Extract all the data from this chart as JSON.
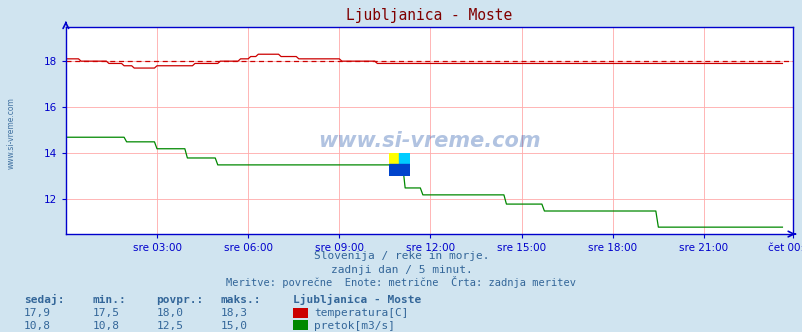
{
  "title": "Ljubljanica - Moste",
  "bg_color": "#d0e4f0",
  "plot_bg_color": "#ffffff",
  "grid_color": "#ffaaaa",
  "axis_color": "#0000cc",
  "title_color": "#800000",
  "label_color": "#336699",
  "x_labels": [
    "sre 03:00",
    "sre 06:00",
    "sre 09:00",
    "sre 12:00",
    "sre 15:00",
    "sre 18:00",
    "sre 21:00",
    "čet 00:00"
  ],
  "y_ticks_temp": [
    12,
    14,
    16,
    18
  ],
  "ylim": [
    10.5,
    19.5
  ],
  "temp_color": "#cc0000",
  "flow_color": "#008800",
  "temp_avg_line": 18.0,
  "temp_avg_color": "#cc0000",
  "watermark": "www.si-vreme.com",
  "subtitle1": "Slovenija / reke in morje.",
  "subtitle2": "zadnji dan / 5 minut.",
  "subtitle3": "Meritve: povrečne  Enote: metrične  Črta: zadnja meritev",
  "legend_title": "Ljubljanica - Moste",
  "legend_items": [
    {
      "label": "temperatura[C]",
      "color": "#cc0000"
    },
    {
      "label": "pretok[m3/s]",
      "color": "#008800"
    }
  ],
  "stats_headers": [
    "sedaj:",
    "min.:",
    "povpr.:",
    "maks.:"
  ],
  "stats_temp": [
    "17,9",
    "17,5",
    "18,0",
    "18,3"
  ],
  "stats_flow": [
    "10,8",
    "10,8",
    "12,5",
    "15,0"
  ],
  "temp_data": [
    18.1,
    18.1,
    18.1,
    18.1,
    18.1,
    18.1,
    18.0,
    18.0,
    18.0,
    18.0,
    18.0,
    18.0,
    18.0,
    18.0,
    18.0,
    18.0,
    18.0,
    17.9,
    17.9,
    17.9,
    17.9,
    17.9,
    17.9,
    17.8,
    17.8,
    17.8,
    17.8,
    17.7,
    17.7,
    17.7,
    17.7,
    17.7,
    17.7,
    17.7,
    17.7,
    17.7,
    17.8,
    17.8,
    17.8,
    17.8,
    17.8,
    17.8,
    17.8,
    17.8,
    17.8,
    17.8,
    17.8,
    17.8,
    17.8,
    17.8,
    17.8,
    17.9,
    17.9,
    17.9,
    17.9,
    17.9,
    17.9,
    17.9,
    17.9,
    17.9,
    17.9,
    18.0,
    18.0,
    18.0,
    18.0,
    18.0,
    18.0,
    18.0,
    18.0,
    18.1,
    18.1,
    18.1,
    18.1,
    18.2,
    18.2,
    18.2,
    18.3,
    18.3,
    18.3,
    18.3,
    18.3,
    18.3,
    18.3,
    18.3,
    18.3,
    18.2,
    18.2,
    18.2,
    18.2,
    18.2,
    18.2,
    18.2,
    18.1,
    18.1,
    18.1,
    18.1,
    18.1,
    18.1,
    18.1,
    18.1,
    18.1,
    18.1,
    18.1,
    18.1,
    18.1,
    18.1,
    18.1,
    18.1,
    18.1,
    18.0,
    18.0,
    18.0,
    18.0,
    18.0,
    18.0,
    18.0,
    18.0,
    18.0,
    18.0,
    18.0,
    18.0,
    18.0,
    18.0,
    17.9,
    17.9,
    17.9,
    17.9,
    17.9,
    17.9,
    17.9,
    17.9,
    17.9,
    17.9,
    17.9,
    17.9,
    17.9,
    17.9,
    17.9,
    17.9,
    17.9,
    17.9,
    17.9,
    17.9,
    17.9,
    17.9,
    17.9,
    17.9,
    17.9,
    17.9,
    17.9,
    17.9,
    17.9,
    17.9,
    17.9,
    17.9,
    17.9,
    17.9,
    17.9,
    17.9,
    17.9,
    17.9,
    17.9,
    17.9,
    17.9,
    17.9,
    17.9,
    17.9,
    17.9,
    17.9,
    17.9,
    17.9,
    17.9,
    17.9,
    17.9,
    17.9,
    17.9,
    17.9,
    17.9,
    17.9,
    17.9,
    17.9,
    17.9,
    17.9,
    17.9,
    17.9,
    17.9,
    17.9,
    17.9,
    17.9,
    17.9,
    17.9,
    17.9,
    17.9,
    17.9,
    17.9,
    17.9,
    17.9,
    17.9,
    17.9,
    17.9,
    17.9,
    17.9,
    17.9,
    17.9,
    17.9,
    17.9,
    17.9,
    17.9,
    17.9,
    17.9,
    17.9,
    17.9,
    17.9,
    17.9,
    17.9,
    17.9,
    17.9,
    17.9,
    17.9,
    17.9,
    17.9,
    17.9,
    17.9,
    17.9,
    17.9,
    17.9,
    17.9,
    17.9,
    17.9,
    17.9,
    17.9,
    17.9,
    17.9,
    17.9,
    17.9,
    17.9,
    17.9,
    17.9,
    17.9,
    17.9,
    17.9,
    17.9,
    17.9,
    17.9,
    17.9,
    17.9,
    17.9,
    17.9,
    17.9,
    17.9,
    17.9,
    17.9,
    17.9,
    17.9,
    17.9,
    17.9,
    17.9,
    17.9,
    17.9,
    17.9,
    17.9,
    17.9,
    17.9,
    17.9,
    17.9,
    17.9,
    17.9,
    17.9,
    17.9,
    17.9,
    17.9,
    17.9,
    17.9,
    17.9,
    17.9,
    17.9,
    17.9,
    17.9,
    17.9,
    17.9,
    17.9,
    17.9,
    17.9,
    17.9
  ],
  "flow_data": [
    14.7,
    14.7,
    14.7,
    14.7,
    14.7,
    14.7,
    14.7,
    14.7,
    14.7,
    14.7,
    14.7,
    14.7,
    14.7,
    14.7,
    14.7,
    14.7,
    14.7,
    14.7,
    14.7,
    14.7,
    14.7,
    14.7,
    14.7,
    14.7,
    14.5,
    14.5,
    14.5,
    14.5,
    14.5,
    14.5,
    14.5,
    14.5,
    14.5,
    14.5,
    14.5,
    14.5,
    14.2,
    14.2,
    14.2,
    14.2,
    14.2,
    14.2,
    14.2,
    14.2,
    14.2,
    14.2,
    14.2,
    14.2,
    13.8,
    13.8,
    13.8,
    13.8,
    13.8,
    13.8,
    13.8,
    13.8,
    13.8,
    13.8,
    13.8,
    13.8,
    13.5,
    13.5,
    13.5,
    13.5,
    13.5,
    13.5,
    13.5,
    13.5,
    13.5,
    13.5,
    13.5,
    13.5,
    13.5,
    13.5,
    13.5,
    13.5,
    13.5,
    13.5,
    13.5,
    13.5,
    13.5,
    13.5,
    13.5,
    13.5,
    13.5,
    13.5,
    13.5,
    13.5,
    13.5,
    13.5,
    13.5,
    13.5,
    13.5,
    13.5,
    13.5,
    13.5,
    13.5,
    13.5,
    13.5,
    13.5,
    13.5,
    13.5,
    13.5,
    13.5,
    13.5,
    13.5,
    13.5,
    13.5,
    13.5,
    13.5,
    13.5,
    13.5,
    13.5,
    13.5,
    13.5,
    13.5,
    13.5,
    13.5,
    13.5,
    13.5,
    13.5,
    13.5,
    13.5,
    13.5,
    13.5,
    13.5,
    13.5,
    13.5,
    13.5,
    13.5,
    13.5,
    13.5,
    13.5,
    13.5,
    12.5,
    12.5,
    12.5,
    12.5,
    12.5,
    12.5,
    12.5,
    12.2,
    12.2,
    12.2,
    12.2,
    12.2,
    12.2,
    12.2,
    12.2,
    12.2,
    12.2,
    12.2,
    12.2,
    12.2,
    12.2,
    12.2,
    12.2,
    12.2,
    12.2,
    12.2,
    12.2,
    12.2,
    12.2,
    12.2,
    12.2,
    12.2,
    12.2,
    12.2,
    12.2,
    12.2,
    12.2,
    12.2,
    12.2,
    12.2,
    11.8,
    11.8,
    11.8,
    11.8,
    11.8,
    11.8,
    11.8,
    11.8,
    11.8,
    11.8,
    11.8,
    11.8,
    11.8,
    11.8,
    11.8,
    11.5,
    11.5,
    11.5,
    11.5,
    11.5,
    11.5,
    11.5,
    11.5,
    11.5,
    11.5,
    11.5,
    11.5,
    11.5,
    11.5,
    11.5,
    11.5,
    11.5,
    11.5,
    11.5,
    11.5,
    11.5,
    11.5,
    11.5,
    11.5,
    11.5,
    11.5,
    11.5,
    11.5,
    11.5,
    11.5,
    11.5,
    11.5,
    11.5,
    11.5,
    11.5,
    11.5,
    11.5,
    11.5,
    11.5,
    11.5,
    11.5,
    11.5,
    11.5,
    11.5,
    11.5,
    10.8,
    10.8,
    10.8,
    10.8,
    10.8,
    10.8,
    10.8,
    10.8,
    10.8,
    10.8,
    10.8,
    10.8,
    10.8,
    10.8,
    10.8,
    10.8,
    10.8,
    10.8,
    10.8,
    10.8,
    10.8,
    10.8,
    10.8,
    10.8,
    10.8,
    10.8,
    10.8,
    10.8,
    10.8,
    10.8,
    10.8,
    10.8,
    10.8,
    10.8,
    10.8,
    10.8,
    10.8,
    10.8,
    10.8,
    10.8,
    10.8,
    10.8,
    10.8,
    10.8,
    10.8,
    10.8,
    10.8,
    10.8,
    10.8,
    10.8
  ]
}
